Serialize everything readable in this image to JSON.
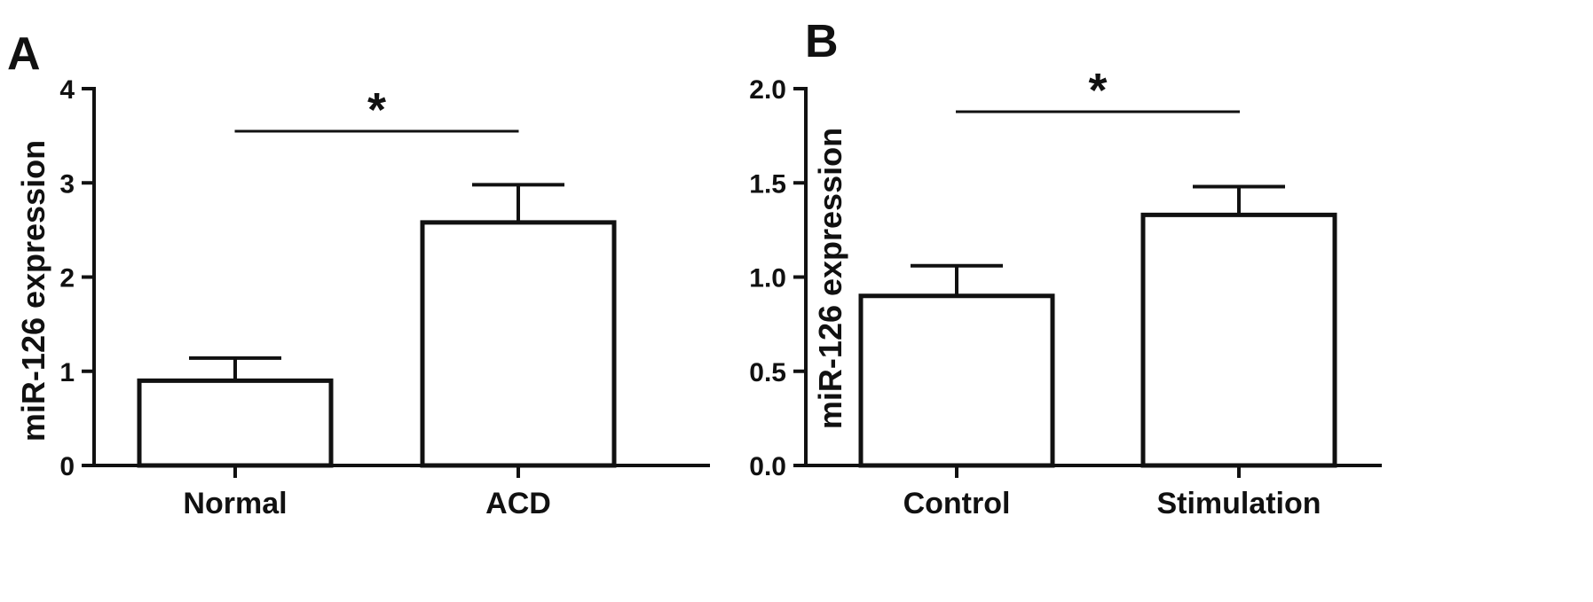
{
  "figure": {
    "panels": [
      {
        "label": "A"
      },
      {
        "label": "B"
      }
    ]
  },
  "colors": {
    "ink": "#111111",
    "bar_fill": "#ffffff",
    "background": "#ffffff"
  },
  "chart_data": [
    {
      "panel": "A",
      "type": "bar",
      "categories": [
        "Normal",
        "ACD"
      ],
      "values": [
        0.9,
        2.58
      ],
      "error_upper": [
        1.14,
        2.98
      ],
      "ylabel": "miR-126 expression",
      "ylim": [
        0,
        4
      ],
      "yticks": [
        0,
        1,
        2,
        3,
        4
      ],
      "ytick_labels": [
        "0",
        "1",
        "2",
        "3",
        "4"
      ],
      "grid": false,
      "significance": {
        "from": "Normal",
        "to": "ACD",
        "label": "*"
      }
    },
    {
      "panel": "B",
      "type": "bar",
      "categories": [
        "Control",
        "Stimulation"
      ],
      "values": [
        0.9,
        1.33
      ],
      "error_upper": [
        1.06,
        1.48
      ],
      "ylabel": "miR-126  expression",
      "ylim": [
        0,
        2
      ],
      "yticks": [
        0,
        0.5,
        1,
        1.5,
        2
      ],
      "ytick_labels": [
        "0.0",
        "0.5",
        "1.0",
        "1.5",
        "2.0"
      ],
      "grid": false,
      "significance": {
        "from": "Control",
        "to": "Stimulation",
        "label": "*"
      }
    }
  ]
}
